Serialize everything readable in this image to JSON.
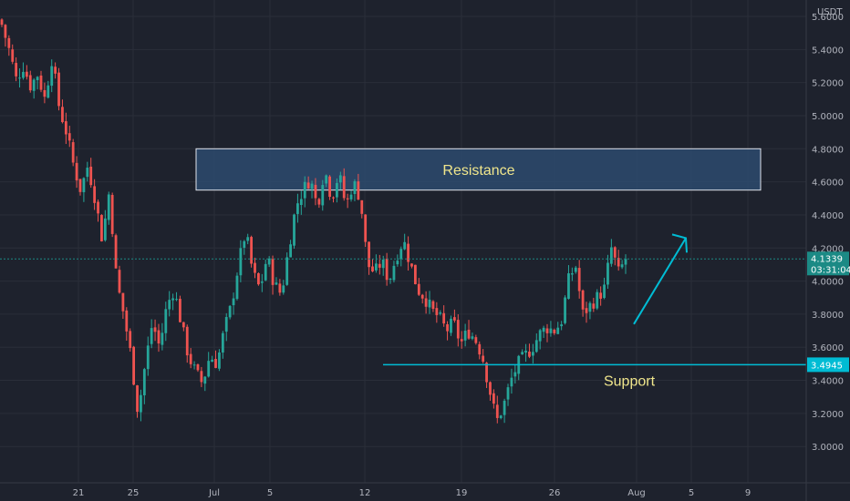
{
  "chart_data": {
    "type": "candlestick",
    "currency": "USDT",
    "y_range": [
      2.88,
      5.6
    ],
    "y_ticks": [
      "5.6000",
      "5.4000",
      "5.2000",
      "5.0000",
      "4.8000",
      "4.6000",
      "4.4000",
      "4.2000",
      "4.0000",
      "3.8000",
      "3.6000",
      "3.4000",
      "3.2000",
      "3.0000"
    ],
    "x_ticks": [
      "21",
      "25",
      "Jul",
      "5",
      "12",
      "19",
      "26",
      "Aug",
      "5",
      "9"
    ],
    "colors": {
      "background": "#1e222d",
      "up": "#26a69a",
      "down": "#ef5350",
      "zone_fill": "#2d4a6e",
      "zone_border": "#e0e3eb",
      "zone_text": "#f0e68c",
      "support_line": "#00bcd4",
      "arrow": "#00bcd4",
      "current_price_bg": "#1b8a85"
    },
    "current_price": {
      "value": 4.1339,
      "label": "4.1339",
      "countdown": "03:31:04"
    },
    "resistance": {
      "label": "Resistance",
      "low": 4.55,
      "high": 4.8
    },
    "support": {
      "label": "Support",
      "value": 3.4945,
      "price_label": "3.4945"
    },
    "projection_arrow": {
      "from_price": 3.74,
      "to_price": 4.26
    },
    "close_path": [
      5.55,
      5.4,
      5.22,
      5.3,
      5.18,
      5.25,
      5.1,
      5.35,
      5.05,
      4.9,
      4.7,
      4.55,
      4.7,
      4.5,
      4.25,
      4.55,
      4.0,
      3.8,
      3.55,
      3.2,
      3.5,
      3.75,
      3.6,
      3.85,
      3.95,
      3.75,
      3.55,
      3.45,
      3.38,
      3.55,
      3.5,
      3.7,
      3.85,
      4.1,
      4.3,
      4.05,
      3.95,
      4.15,
      3.98,
      3.92,
      4.2,
      4.45,
      4.55,
      4.62,
      4.45,
      4.68,
      4.5,
      4.65,
      4.45,
      4.6,
      4.5,
      4.1,
      4.05,
      4.12,
      4.0,
      4.15,
      4.25,
      4.1,
      3.95,
      3.9,
      3.82,
      3.78,
      3.7,
      3.75,
      3.62,
      3.7,
      3.65,
      3.55,
      3.35,
      3.15,
      3.25,
      3.4,
      3.5,
      3.55,
      3.6,
      3.68,
      3.72,
      3.7,
      3.75,
      4.0,
      4.1,
      3.8,
      3.85,
      3.9,
      3.95,
      4.2,
      4.05,
      4.13
    ]
  }
}
